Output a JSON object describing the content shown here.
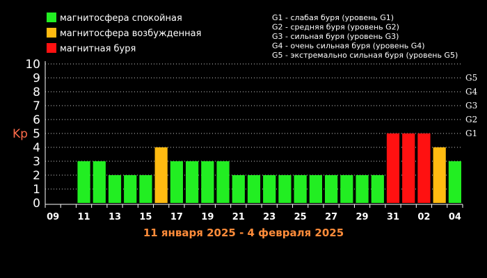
{
  "colors": {
    "quiet": "#22ee22",
    "active": "#ffbb11",
    "storm": "#ff1111",
    "background": "#000000",
    "axis_text": "#ffffff",
    "ylabel": "#ff6b4a",
    "subtitle": "#ff8c3a"
  },
  "legend": [
    {
      "label": "магнитосфера спокойная",
      "color": "#22ee22"
    },
    {
      "label": "магнитосфера возбужденная",
      "color": "#ffbb11"
    },
    {
      "label": "магнитная буря",
      "color": "#ff1111"
    }
  ],
  "storm_levels_text": [
    "G1 - слабая буря (уровень G1)",
    "G2 - средняя буря (уровень G2)",
    "G3 - сильная буря (уровень G3)",
    "G4 - очень сильная буря (уровень G4)",
    "G5 - экстремально сильная буря (уровень G5)"
  ],
  "chart_data": {
    "type": "bar",
    "title": "",
    "subtitle": "11 января 2025 - 4 февраля 2025",
    "ylabel": "Kp",
    "xlabel": "",
    "ylim": [
      0,
      10
    ],
    "yticks": [
      "0",
      "1",
      "2",
      "3",
      "4",
      "5",
      "6",
      "7",
      "8",
      "9",
      "10"
    ],
    "right_ticks": [
      {
        "kp": 5,
        "label": "G1"
      },
      {
        "kp": 6,
        "label": "G2"
      },
      {
        "kp": 7,
        "label": "G3"
      },
      {
        "kp": 8,
        "label": "G4"
      },
      {
        "kp": 9,
        "label": "G5"
      }
    ],
    "xtick_labels": [
      "09",
      "11",
      "13",
      "15",
      "17",
      "19",
      "21",
      "23",
      "25",
      "27",
      "29",
      "31",
      "02",
      "04"
    ],
    "grid": true,
    "categories": [
      "09",
      "10",
      "11",
      "12",
      "13",
      "14",
      "15",
      "16",
      "17",
      "18",
      "19",
      "20",
      "21",
      "22",
      "23",
      "24",
      "25",
      "26",
      "27",
      "28",
      "29",
      "30",
      "31",
      "01",
      "02",
      "03",
      "04"
    ],
    "values": [
      null,
      null,
      3,
      3,
      2,
      2,
      2,
      4,
      3,
      3,
      3,
      3,
      2,
      2,
      2,
      2,
      2,
      2,
      2,
      2,
      2,
      2,
      5,
      5,
      5,
      4,
      3
    ],
    "levels": [
      "",
      "",
      "quiet",
      "quiet",
      "quiet",
      "quiet",
      "quiet",
      "active",
      "quiet",
      "quiet",
      "quiet",
      "quiet",
      "quiet",
      "quiet",
      "quiet",
      "quiet",
      "quiet",
      "quiet",
      "quiet",
      "quiet",
      "quiet",
      "quiet",
      "storm",
      "storm",
      "storm",
      "active",
      "quiet"
    ]
  }
}
